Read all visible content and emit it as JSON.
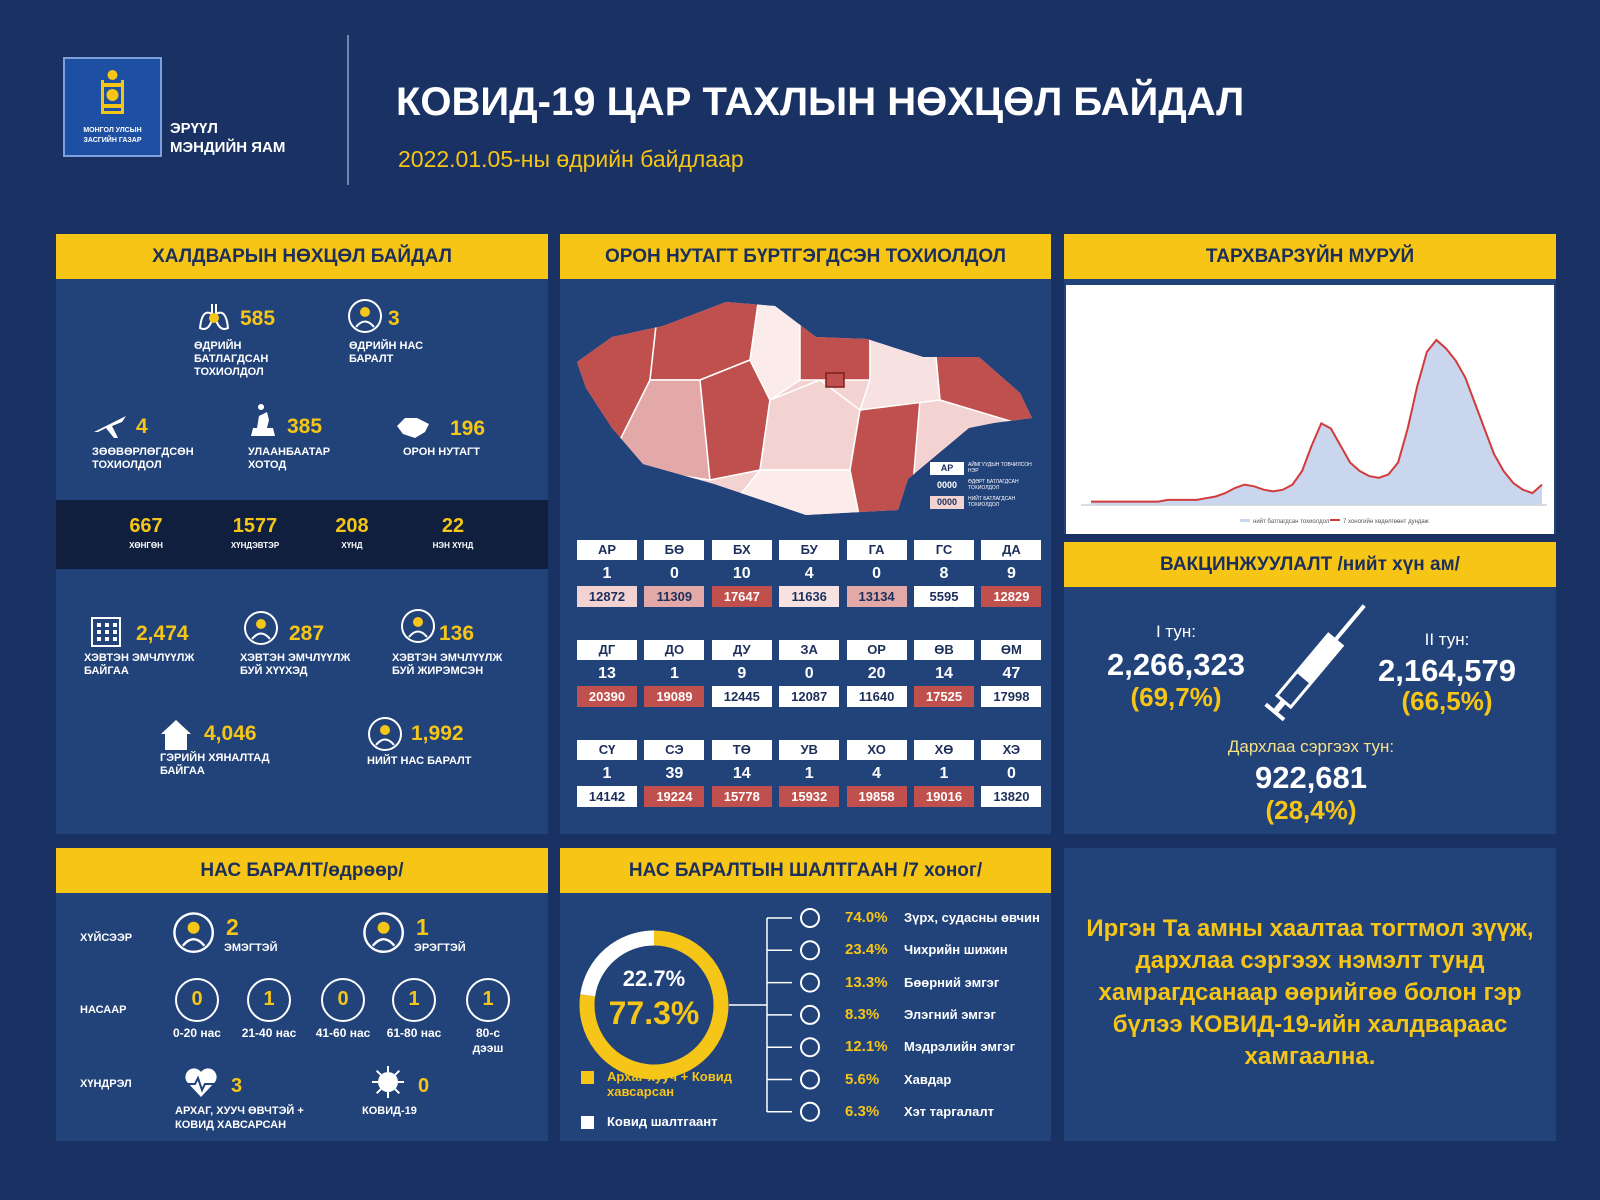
{
  "header": {
    "org_line1": "МОНГОЛ УЛСЫН",
    "org_line2": "ЗАСГИЙН ГАЗАР",
    "ministry_line1": "ЭРҮҮЛ",
    "ministry_line2": "МЭНДИЙН ЯАМ",
    "title": "КОВИД-19 ЦАР ТАХЛЫН НӨХЦӨЛ БАЙДАЛ",
    "date": "2022.01.05-ны өдрийн байдлаар"
  },
  "infection": {
    "title": "ХАЛДВАРЫН НӨХЦӨЛ БАЙДАЛ",
    "daily_stats": [
      {
        "value": 585,
        "label": "ӨДРИЙН БАТЛАГДСАН ТОХИОЛДОЛ"
      },
      {
        "value": 3,
        "label": "ӨДРИЙН НАС БАРАЛТ"
      },
      {
        "value": 4,
        "label": "ЗӨӨВӨРЛӨГДСӨН ТОХИОЛДОЛ"
      },
      {
        "value": 385,
        "label": "УЛААНБААТАР ХОТОД"
      },
      {
        "value": 196,
        "label": "ОРОН НУТАГТ"
      }
    ],
    "severity": [
      {
        "value": 667,
        "label": "ХӨНГӨН"
      },
      {
        "value": 1577,
        "label": "ХҮНДЭВТЭР"
      },
      {
        "value": 208,
        "label": "ХҮНД"
      },
      {
        "value": 22,
        "label": "НЭН ХҮНД"
      }
    ],
    "care": [
      {
        "value": "2,474",
        "label": "ХЭВТЭН ЭМЧЛҮҮЛЖ БАЙГАА"
      },
      {
        "value": 287,
        "label": "ХЭВТЭН ЭМЧЛҮҮЛЖ БУЙ ХҮҮХЭД"
      },
      {
        "value": 136,
        "label": "ХЭВТЭН ЭМЧЛҮҮЛЖ БУЙ ЖИРЭМСЭН"
      },
      {
        "value": "4,046",
        "label": "ГЭРИЙН ХЯНАЛТАД БАЙГАА"
      },
      {
        "value": "1,992",
        "label": "НИЙТ НАС БАРАЛТ"
      }
    ]
  },
  "regions": {
    "title": "ОРОН НУТАГТ БҮРТГЭГДСЭН ТОХИОЛДОЛ",
    "legend": [
      {
        "sample": "АР",
        "label": "АЙМГУУДЫН ТОВЧИЛСОН НЭР"
      },
      {
        "sample": "0000",
        "label": "ӨДӨРТ БАТЛАГДСАН ТОХИОЛДОЛ"
      },
      {
        "sample": "0000",
        "label": "НИЙТ БАТЛАГДСАН ТОХИОЛДОЛ"
      }
    ],
    "provinces": [
      {
        "code": "АР",
        "daily": 1,
        "total": 12872,
        "color": "#f3d3d2"
      },
      {
        "code": "БӨ",
        "daily": 0,
        "total": 11309,
        "color": "#e3a9a8"
      },
      {
        "code": "БХ",
        "daily": 10,
        "total": 17647,
        "color": "#c0504d"
      },
      {
        "code": "БУ",
        "daily": 4,
        "total": 11636,
        "color": "#f7e2e1"
      },
      {
        "code": "ГА",
        "daily": 0,
        "total": 13134,
        "color": "#e3a9a8"
      },
      {
        "code": "ГС",
        "daily": 8,
        "total": 5595,
        "color": "#ffffff"
      },
      {
        "code": "ДА",
        "daily": 9,
        "total": 12829,
        "color": "#c0504d"
      },
      {
        "code": "ДГ",
        "daily": 13,
        "total": 20390,
        "color": "#c0504d"
      },
      {
        "code": "ДО",
        "daily": 1,
        "total": 19089,
        "color": "#c0504d"
      },
      {
        "code": "ДУ",
        "daily": 9,
        "total": 12445,
        "color": "#ffffff"
      },
      {
        "code": "ЗА",
        "daily": 0,
        "total": 12087,
        "color": "#ffffff"
      },
      {
        "code": "ОР",
        "daily": 20,
        "total": 11640,
        "color": "#ffffff"
      },
      {
        "code": "ӨВ",
        "daily": 14,
        "total": 17525,
        "color": "#c0504d"
      },
      {
        "code": "ӨМ",
        "daily": 47,
        "total": 17998,
        "color": "#ffffff"
      },
      {
        "code": "СҮ",
        "daily": 1,
        "total": 14142,
        "color": "#ffffff"
      },
      {
        "code": "СЭ",
        "daily": 39,
        "total": 19224,
        "color": "#c0504d"
      },
      {
        "code": "ТӨ",
        "daily": 14,
        "total": 15778,
        "color": "#c0504d"
      },
      {
        "code": "УВ",
        "daily": 1,
        "total": 15932,
        "color": "#c0504d"
      },
      {
        "code": "ХО",
        "daily": 4,
        "total": 19858,
        "color": "#c0504d"
      },
      {
        "code": "ХӨ",
        "daily": 1,
        "total": 19016,
        "color": "#c0504d"
      },
      {
        "code": "ХЭ",
        "daily": 0,
        "total": 13820,
        "color": "#ffffff"
      }
    ]
  },
  "epidemic_curve": {
    "title": "ТАРХВАРЗҮЙН МУРУЙ",
    "legend": [
      "нийт батлагдсан тохиолдол",
      "7 хоногийн хөдөлгөөнт дундаж"
    ],
    "area_color": "#c9d6ee",
    "line_color": "#d23b3b",
    "values": [
      2,
      2,
      2,
      2,
      2,
      2,
      2,
      2,
      3,
      3,
      3,
      3,
      4,
      5,
      7,
      10,
      12,
      11,
      9,
      8,
      9,
      12,
      20,
      35,
      48,
      45,
      35,
      25,
      20,
      17,
      16,
      18,
      25,
      45,
      70,
      90,
      97,
      92,
      85,
      75,
      60,
      45,
      30,
      20,
      13,
      9,
      7,
      12
    ]
  },
  "vaccination": {
    "title": "ВАКЦИНЖУУЛАЛТ /нийт хүн ам/",
    "dose1": {
      "label": "I тун:",
      "count": "2,266,323",
      "share": "(69,7%)"
    },
    "dose2": {
      "label": "II тун:",
      "count": "2,164,579",
      "share": "(66,5%)"
    },
    "booster": {
      "label": "Дархлаа сэргээх тун:",
      "count": "922,681",
      "share": "(28,4%)"
    }
  },
  "deaths": {
    "title": "НАС БАРАЛТ/өдрөөр/",
    "by_sex": {
      "label": "ХҮЙСЭЭР",
      "items": [
        {
          "value": 2,
          "label": "ЭМЭГТЭЙ"
        },
        {
          "value": 1,
          "label": "ЭРЭГТЭЙ"
        }
      ]
    },
    "by_age": {
      "label": "НАСААР",
      "items": [
        {
          "value": 0,
          "label": "0-20 нас"
        },
        {
          "value": 1,
          "label": "21-40 нас"
        },
        {
          "value": 0,
          "label": "41-60 нас"
        },
        {
          "value": 1,
          "label": "61-80 нас"
        },
        {
          "value": 1,
          "label": "80-с дээш"
        }
      ]
    },
    "by_complication": {
      "label": "ХҮНДРЭЛ",
      "items": [
        {
          "value": 3,
          "label": "АРХАГ, ХУУЧ ӨВЧТЭЙ + КОВИД ХАВСАРСАН"
        },
        {
          "value": 0,
          "label": "КОВИД-19"
        }
      ]
    }
  },
  "causes": {
    "title": "НАС БАРАЛТЫН ШАЛТГААН /7 хоног/",
    "donut": [
      {
        "name": "Архаг хууч + Ковид хавсарсан",
        "color": "#f5c518",
        "value": 77.3,
        "value_label": "77.3%"
      },
      {
        "name": "Ковид шалтгаант",
        "color": "#ffffff",
        "value": 22.7,
        "value_label": "22.7%"
      }
    ],
    "breakdown": [
      {
        "share": "74.0%",
        "cause": "Зүрх, судасны өвчин"
      },
      {
        "share": "23.4%",
        "cause": "Чихрийн шижин"
      },
      {
        "share": "13.3%",
        "cause": "Бөөрний эмгэг"
      },
      {
        "share": "8.3%",
        "cause": "Элэгний эмгэг"
      },
      {
        "share": "12.1%",
        "cause": "Мэдрэлийн эмгэг"
      },
      {
        "share": "5.6%",
        "cause": "Хавдар"
      },
      {
        "share": "6.3%",
        "cause": "Хэт таргалалт"
      }
    ]
  },
  "message": "Иргэн Та амны хаалтаа тогтмол зүүж, дархлаа сэргээх нэмэлт тунд хамрагдсанаар өөрийгөө болон гэр бүлээ КОВИД-19-ийн халдвараас хамгаална."
}
